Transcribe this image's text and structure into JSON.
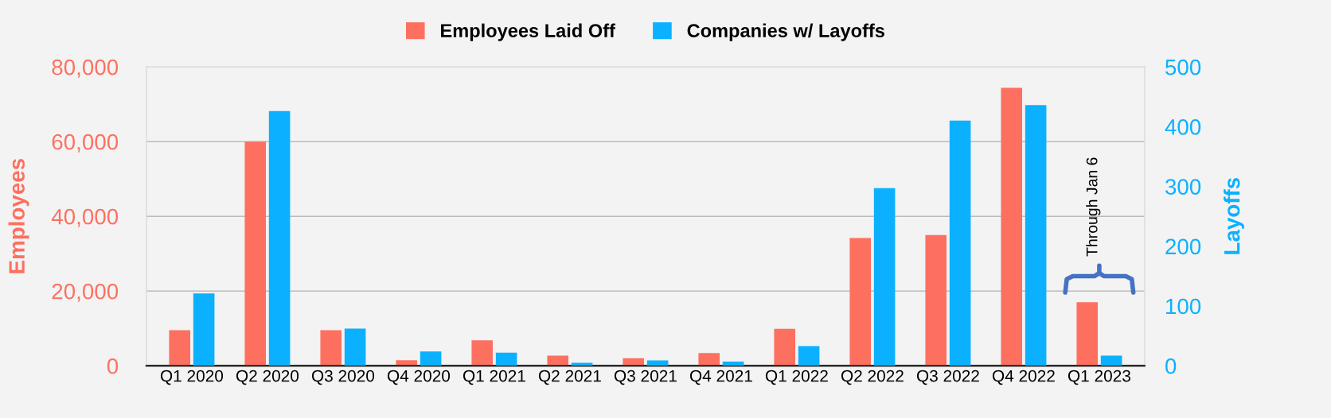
{
  "chart_data": {
    "type": "bar",
    "categories": [
      "Q1 2020",
      "Q2 2020",
      "Q3 2020",
      "Q4 2020",
      "Q1 2021",
      "Q2 2021",
      "Q3 2021",
      "Q4 2021",
      "Q1 2022",
      "Q2 2022",
      "Q3 2022",
      "Q4 2022",
      "Q1 2023"
    ],
    "series": [
      {
        "name": "Employees Laid Off",
        "color": "#fd7060",
        "values": [
          9500,
          60000,
          9500,
          1500,
          6800,
          2700,
          2000,
          3400,
          9900,
          34200,
          35000,
          74400,
          17000
        ]
      },
      {
        "name": "Companies w/ Layoffs",
        "color": "#0bb1fe",
        "axis": "y2",
        "values": [
          121,
          426,
          62,
          24,
          22,
          5,
          9,
          7,
          33,
          297,
          410,
          436,
          17
        ]
      }
    ],
    "ylabel": "Employees",
    "y2label": "Layoffs",
    "ylim": [
      0,
      80000
    ],
    "yticks": [
      {
        "value": 0,
        "label": "0"
      },
      {
        "value": 20000,
        "label": "20,000"
      },
      {
        "value": 40000,
        "label": "40,000"
      },
      {
        "value": 60000,
        "label": "60,000"
      },
      {
        "value": 80000,
        "label": "80,000"
      }
    ],
    "y2lim": [
      0,
      500
    ],
    "y2ticks": [
      0,
      100,
      200,
      300,
      400,
      500
    ],
    "annotations": [
      "Through Jan 6"
    ],
    "grid": "y",
    "legend": "top"
  }
}
